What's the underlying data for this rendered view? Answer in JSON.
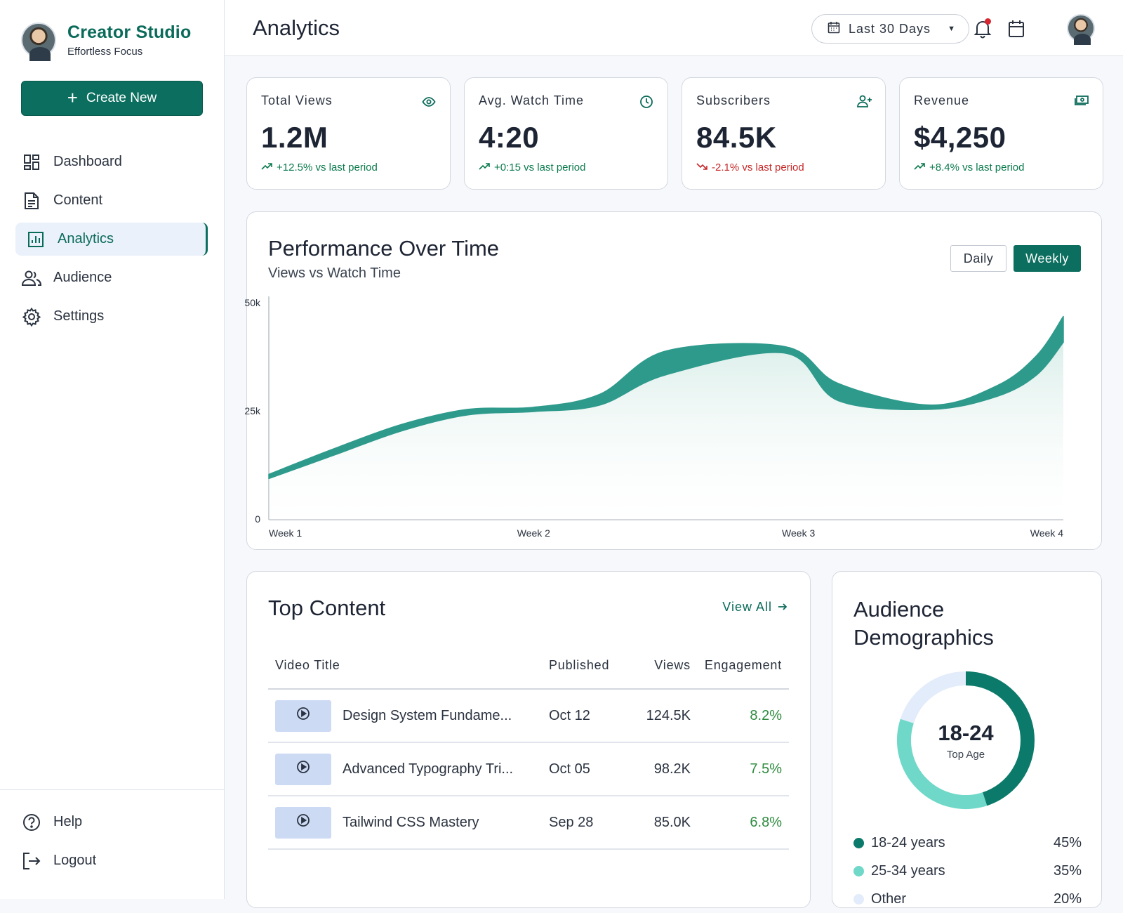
{
  "brand": {
    "title": "Creator Studio",
    "subtitle": "Effortless Focus"
  },
  "sidebar": {
    "create_label": "Create New",
    "items": [
      {
        "label": "Dashboard",
        "icon": "dashboard-icon"
      },
      {
        "label": "Content",
        "icon": "document-icon"
      },
      {
        "label": "Analytics",
        "icon": "analytics-icon",
        "active": true
      },
      {
        "label": "Audience",
        "icon": "audience-icon"
      },
      {
        "label": "Settings",
        "icon": "gear-icon"
      }
    ],
    "footer": [
      {
        "label": "Help",
        "icon": "help-icon"
      },
      {
        "label": "Logout",
        "icon": "logout-icon"
      }
    ]
  },
  "header": {
    "title": "Analytics",
    "date_range": "Last 30 Days"
  },
  "stats": [
    {
      "label": "Total Views",
      "value": "1.2M",
      "delta": "+12.5% vs last period",
      "trend": "up",
      "icon": "eye-icon"
    },
    {
      "label": "Avg. Watch Time",
      "value": "4:20",
      "delta": "+0:15 vs last period",
      "trend": "up",
      "icon": "clock-icon"
    },
    {
      "label": "Subscribers",
      "value": "84.5K",
      "delta": "-2.1% vs last period",
      "trend": "down",
      "icon": "person-add-icon"
    },
    {
      "label": "Revenue",
      "value": "$4,250",
      "delta": "+8.4% vs last period",
      "trend": "up",
      "icon": "money-icon"
    }
  ],
  "performance": {
    "title": "Performance Over Time",
    "subtitle": "Views vs Watch Time",
    "toggle_daily": "Daily",
    "toggle_weekly": "Weekly"
  },
  "chart_data": {
    "type": "area",
    "x": [
      "Week 1",
      "Week 2",
      "Week 3",
      "Week 4"
    ],
    "yticks": [
      "50k",
      "25k",
      "0"
    ],
    "ylim": [
      0,
      50000
    ],
    "series": [
      {
        "x_position": [
          0,
          0.5,
          1,
          1.5,
          2,
          2.5,
          3,
          3.9,
          4.3,
          5,
          5.5,
          5.8,
          6
        ],
        "upper": [
          10500,
          16500,
          22000,
          25500,
          26000,
          29000,
          39000,
          40000,
          31500,
          26500,
          31000,
          38000,
          47000
        ],
        "lower": [
          9500,
          15000,
          20500,
          24200,
          25000,
          26500,
          33500,
          38500,
          27500,
          25500,
          28500,
          33500,
          41000
        ]
      }
    ],
    "colors": {
      "line": "#2e9a8c",
      "fill": "#d8ede8"
    }
  },
  "top_content": {
    "title": "Top Content",
    "view_all": "View All",
    "columns": [
      "Video Title",
      "Published",
      "Views",
      "Engagement"
    ],
    "rows": [
      {
        "title": "Design System Fundame...",
        "published": "Oct 12",
        "views": "124.5K",
        "engagement": "8.2%"
      },
      {
        "title": "Advanced Typography Tri...",
        "published": "Oct 05",
        "views": "98.2K",
        "engagement": "7.5%"
      },
      {
        "title": "Tailwind CSS Mastery",
        "published": "Sep 28",
        "views": "85.0K",
        "engagement": "6.8%"
      }
    ]
  },
  "demographics": {
    "title": "Audience Demographics",
    "center_value": "18-24",
    "center_label": "Top Age",
    "segments": [
      {
        "label": "18-24 years",
        "pct": "45%",
        "value": 45,
        "color": "#0b7a6a"
      },
      {
        "label": "25-34 years",
        "pct": "35%",
        "value": 35,
        "color": "#6fd8c8"
      },
      {
        "label": "Other",
        "pct": "20%",
        "value": 20,
        "color": "#e3ecfb"
      }
    ]
  }
}
